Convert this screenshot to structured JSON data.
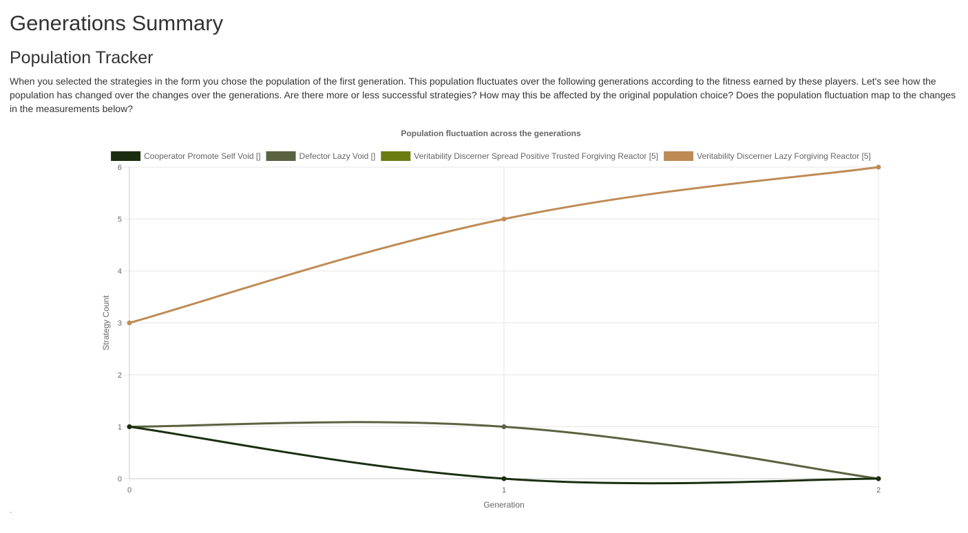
{
  "page": {
    "title": "Generations Summary",
    "section_title": "Population Tracker",
    "intro": "When you selected the strategies in the form you chose the population of the first generation. This population fluctuates over the following generations according to the fitness earned by these players. Let's see how the population has changed over the changes over the generations. Are there more or less successful strategies? How may this be affected by the original population choice? Does the population fluctuation map to the changes in the measurements below?",
    "trailing_mark": "`"
  },
  "chart_data": {
    "type": "line",
    "title": "Population fluctuation across the generations",
    "xlabel": "Generation",
    "ylabel": "Strategy Count",
    "x": [
      0,
      1,
      2
    ],
    "xticks": [
      "0",
      "1",
      "2"
    ],
    "yticks": [
      "0",
      "1",
      "2",
      "3",
      "4",
      "5",
      "6"
    ],
    "xlim": [
      0,
      2
    ],
    "ylim": [
      0,
      6
    ],
    "grid": true,
    "legend_position": "top",
    "series": [
      {
        "name": "Cooperator Promote Self Void []",
        "color": "#1a2e0f",
        "values": [
          1,
          0,
          0
        ]
      },
      {
        "name": "Defector Lazy Void []",
        "color": "#5a6240",
        "values": [
          1,
          1,
          0
        ]
      },
      {
        "name": "Veritability Discerner Spread Positive Trusted Forgiving Reactor [5]",
        "color": "#6b7d12",
        "values": [
          null,
          null,
          null
        ]
      },
      {
        "name": "Veritability Discerner Lazy Forgiving Reactor [5]",
        "color": "#bf8b55",
        "values": [
          3,
          5,
          6
        ]
      }
    ]
  }
}
